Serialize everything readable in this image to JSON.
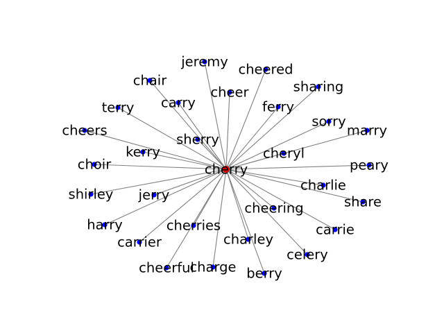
{
  "graph": {
    "center": "cherry",
    "neighbors": [
      "jeremy",
      "cheered",
      "chair",
      "cheer",
      "sharing",
      "terry",
      "carry",
      "ferry",
      "sorry",
      "marry",
      "cheers",
      "sherry",
      "kerry",
      "cheryl",
      "choir",
      "peary",
      "charlie",
      "shirley",
      "jerry",
      "share",
      "cheering",
      "harry",
      "cherries",
      "carrie",
      "carrier",
      "charley",
      "celery",
      "cheerful",
      "charge",
      "berry"
    ],
    "colors": {
      "center_node": "#cc0000",
      "neighbor_node": "#0000ff",
      "edge": "#808080"
    }
  }
}
